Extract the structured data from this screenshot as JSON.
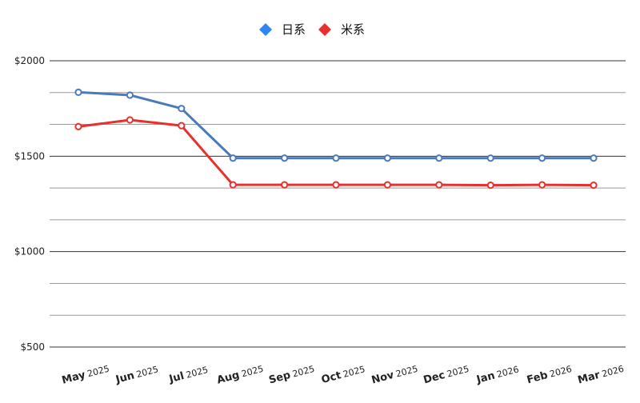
{
  "chart_data": {
    "type": "line",
    "title": "",
    "xlabel": "",
    "ylabel": "",
    "categories": [
      "May 2025",
      "Jun 2025",
      "Jul 2025",
      "Aug 2025",
      "Sep 2025",
      "Oct 2025",
      "Nov 2025",
      "Dec 2025",
      "Jan 2026",
      "Feb 2026",
      "Mar 2026"
    ],
    "x_tick_labels": [
      {
        "month": "May",
        "year": "2025"
      },
      {
        "month": "Jun",
        "year": "2025"
      },
      {
        "month": "Jul",
        "year": "2025"
      },
      {
        "month": "Aug",
        "year": "2025"
      },
      {
        "month": "Sep",
        "year": "2025"
      },
      {
        "month": "Oct",
        "year": "2025"
      },
      {
        "month": "Nov",
        "year": "2025"
      },
      {
        "month": "Dec",
        "year": "2025"
      },
      {
        "month": "Jan",
        "year": "2026"
      },
      {
        "month": "Feb",
        "year": "2026"
      },
      {
        "month": "Mar",
        "year": "2026"
      }
    ],
    "series": [
      {
        "name": "日系",
        "color": "#4a7ab8",
        "marker_color": "#2f86f0",
        "values": [
          1835,
          1820,
          1750,
          1490,
          1490,
          1490,
          1490,
          1490,
          1490,
          1490,
          1490
        ]
      },
      {
        "name": "米系",
        "color": "#e8302e",
        "marker_color": "#e8302e",
        "values": [
          1655,
          1690,
          1660,
          1350,
          1350,
          1350,
          1350,
          1350,
          1348,
          1350,
          1348
        ]
      }
    ],
    "ylim": [
      500,
      2000
    ],
    "y_tick_labels": [
      "$2000",
      "$1500",
      "$1000",
      "$500"
    ],
    "y_tick_values": [
      2000,
      1500,
      1000,
      500
    ],
    "y_minor_values": [
      1833.33,
      1666.67,
      1333.33,
      1166.67,
      833.33,
      666.67
    ],
    "grid": true,
    "legend": "top-center"
  }
}
